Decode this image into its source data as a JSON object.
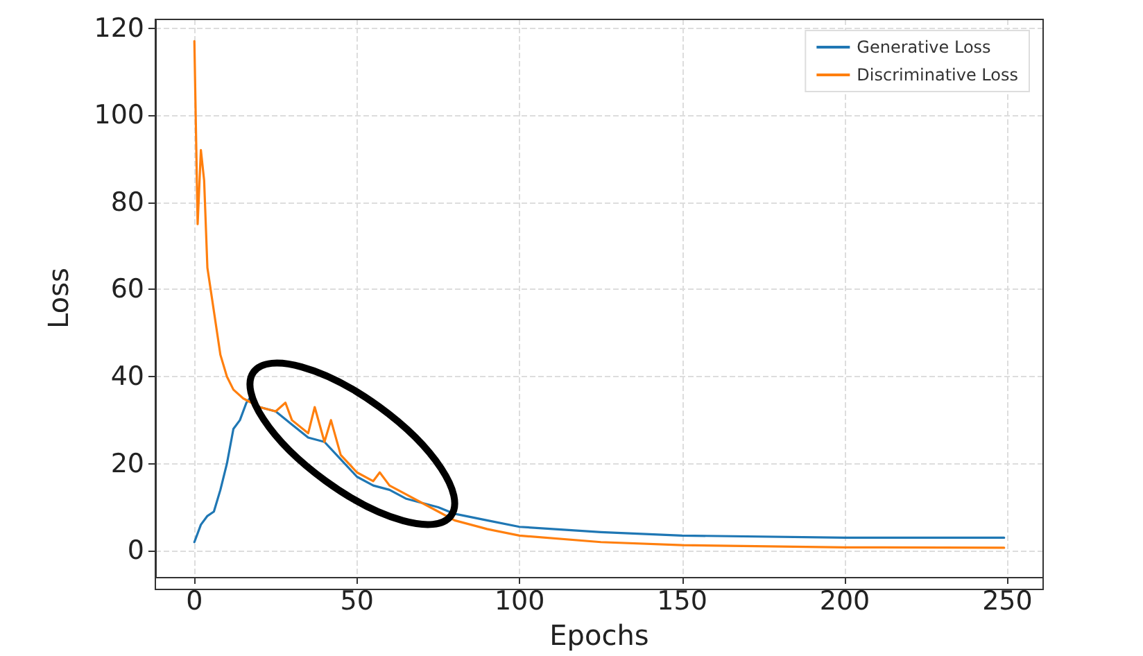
{
  "chart_data": {
    "type": "line",
    "xlabel": "Epochs",
    "ylabel": "Loss",
    "xlim": [
      -12,
      261
    ],
    "ylim": [
      -6,
      122
    ],
    "xticks": [
      0,
      50,
      100,
      150,
      200,
      250
    ],
    "yticks": [
      0,
      20,
      40,
      60,
      80,
      100,
      120
    ],
    "grid": true,
    "legend": "top right",
    "marker": "none",
    "line_style": "solid",
    "series": [
      {
        "name": "Generative Loss",
        "color": "#1f77b4",
        "x": [
          0,
          2,
          4,
          6,
          8,
          10,
          12,
          14,
          16,
          17,
          20,
          25,
          30,
          35,
          40,
          45,
          50,
          55,
          60,
          65,
          70,
          75,
          80,
          90,
          100,
          125,
          150,
          200,
          249
        ],
        "values": [
          2,
          6,
          8,
          9,
          14,
          20,
          28,
          30,
          34,
          35,
          33,
          32,
          29,
          26,
          25,
          21,
          17,
          15,
          14,
          12,
          11,
          10,
          8.5,
          7,
          5.5,
          4.3,
          3.5,
          3,
          3
        ]
      },
      {
        "name": "Discriminative Loss",
        "color": "#ff7f0e",
        "x": [
          0,
          1,
          2,
          3,
          4,
          6,
          8,
          10,
          12,
          15,
          20,
          25,
          28,
          30,
          35,
          37,
          40,
          42,
          45,
          50,
          55,
          57,
          60,
          65,
          70,
          75,
          80,
          90,
          100,
          125,
          150,
          200,
          249
        ],
        "values": [
          117,
          75,
          92,
          85,
          65,
          55,
          45,
          40,
          37,
          35,
          33,
          32,
          34,
          30,
          27,
          33,
          25,
          30,
          22,
          18,
          16,
          18,
          15,
          13,
          11,
          9,
          7,
          5,
          3.5,
          2,
          1.3,
          0.8,
          0.7
        ]
      }
    ]
  }
}
